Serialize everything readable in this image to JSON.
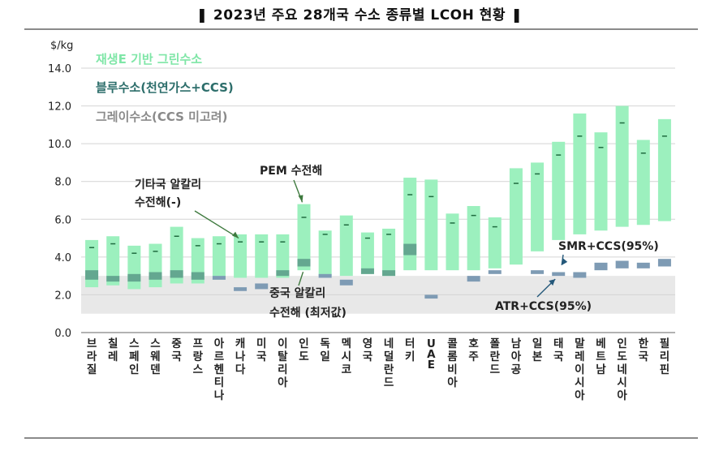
{
  "chart_data": {
    "type": "bar",
    "title": "❚ 2023년 주요 28개국 수소 종류별 LCOH 현황 ❚",
    "ylabel": "$/kg",
    "ylim": [
      0,
      14
    ],
    "yticks": [
      "0.0",
      "2.0",
      "4.0",
      "6.0",
      "8.0",
      "10.0",
      "12.0",
      "14.0"
    ],
    "categories": [
      "브라질",
      "칠레",
      "스페인",
      "스웨덴",
      "중국",
      "프랑스",
      "아르헨티나",
      "캐나다",
      "미국",
      "이탈리아",
      "인도",
      "독일",
      "멕시코",
      "영국",
      "네덜란드",
      "터키",
      "UAE",
      "콜롬비아",
      "호주",
      "폴란드",
      "남아공",
      "일본",
      "태국",
      "말레이시아",
      "베트남",
      "인도네시아",
      "한국",
      "필리핀"
    ],
    "grey_band": [
      1.0,
      3.0
    ],
    "series": [
      {
        "name": "재생E 기반 그린수소",
        "color": "#9cf0be",
        "low": [
          2.4,
          2.5,
          2.3,
          2.4,
          2.6,
          2.6,
          2.8,
          2.9,
          2.9,
          2.9,
          3.3,
          3.0,
          3.0,
          3.1,
          3.0,
          3.3,
          3.3,
          3.3,
          3.3,
          3.4,
          3.6,
          4.3,
          4.9,
          5.2,
          5.4,
          5.6,
          5.7,
          5.9
        ],
        "mid": [
          4.5,
          4.7,
          4.2,
          4.3,
          5.1,
          4.6,
          4.7,
          4.8,
          4.8,
          4.8,
          6.1,
          5.2,
          5.7,
          5.0,
          5.2,
          7.3,
          7.2,
          5.8,
          6.2,
          5.6,
          7.9,
          8.4,
          9.4,
          10.4,
          9.8,
          11.1,
          9.5,
          10.4
        ],
        "high": [
          4.9,
          5.1,
          4.6,
          4.7,
          5.6,
          5.0,
          5.1,
          5.2,
          5.2,
          5.2,
          6.8,
          5.4,
          6.2,
          5.3,
          5.5,
          8.2,
          8.1,
          6.3,
          6.7,
          6.1,
          8.7,
          9.0,
          10.1,
          11.6,
          10.6,
          12.0,
          10.2,
          11.3
        ]
      },
      {
        "name": "블루수소(천연가스+CCS)",
        "color": "#5a9a88",
        "low": [
          2.8,
          2.7,
          2.7,
          2.8,
          2.9,
          2.8,
          null,
          null,
          null,
          3.0,
          3.5,
          null,
          null,
          3.1,
          3.0,
          4.1,
          null,
          null,
          null,
          null,
          null,
          null,
          null,
          null,
          null,
          null,
          null,
          null
        ],
        "high": [
          3.3,
          3.0,
          3.1,
          3.2,
          3.3,
          3.2,
          null,
          null,
          null,
          3.3,
          3.9,
          null,
          null,
          3.4,
          3.3,
          4.7,
          null,
          null,
          null,
          null,
          null,
          null,
          null,
          null,
          null,
          null,
          null,
          null
        ]
      },
      {
        "name": "그레이수소(CCS 미고려)",
        "color": "#7e9bb4",
        "low": [
          null,
          null,
          null,
          null,
          null,
          null,
          2.8,
          2.2,
          2.3,
          null,
          null,
          2.9,
          2.5,
          null,
          null,
          null,
          1.8,
          null,
          2.7,
          3.1,
          null,
          3.1,
          3.0,
          2.9,
          3.3,
          3.4,
          3.4,
          3.5
        ],
        "high": [
          null,
          null,
          null,
          null,
          null,
          null,
          3.0,
          2.4,
          2.6,
          null,
          null,
          3.1,
          2.8,
          null,
          null,
          null,
          2.0,
          null,
          3.0,
          3.3,
          null,
          3.3,
          3.2,
          3.2,
          3.7,
          3.8,
          3.7,
          3.9
        ]
      }
    ],
    "annotations": [
      {
        "text": [
          "기타국 알칼리",
          "수전해(-)"
        ],
        "target_category": "캐나다",
        "target_value": 5.0
      },
      {
        "text": [
          "PEM 수전해"
        ],
        "target_category": "인도",
        "target_value": 6.9
      },
      {
        "text": [
          "중국 알칼리",
          "수전해 (최저값)"
        ],
        "target_category": "인도",
        "target_value": 3.3
      },
      {
        "text": [
          "SMR+CCS(95%)"
        ],
        "target_category": "태국",
        "target_value": 3.4
      },
      {
        "text": [
          "ATR+CCS(95%)"
        ],
        "target_category": "태국",
        "target_value": 3.0
      }
    ]
  }
}
